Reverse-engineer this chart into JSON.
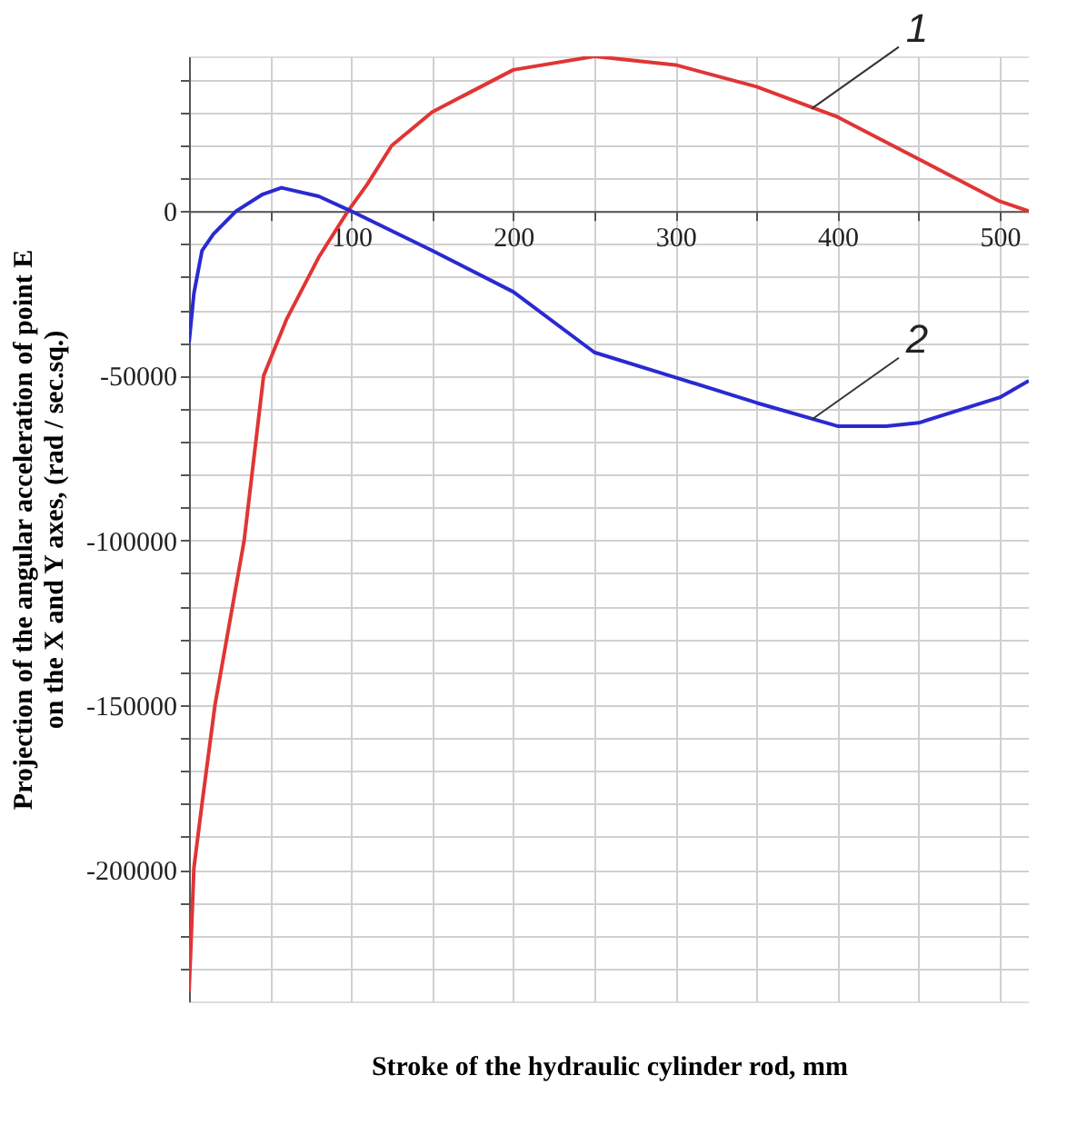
{
  "chart_data": {
    "type": "line",
    "xlabel": "Stroke of the hydraulic cylinder rod, mm",
    "ylabel": "Projection of the angular acceleration of point E\non the X and Y axes, (rad / sec.sq.)",
    "xlim": [
      0,
      518
    ],
    "ylim": [
      -240000,
      47000
    ],
    "xticks": [
      {
        "value": 50,
        "label": null
      },
      100,
      {
        "value": 150,
        "label": null
      },
      200,
      {
        "value": 250,
        "label": null
      },
      300,
      {
        "value": 350,
        "label": null
      },
      400,
      {
        "value": 450,
        "label": null
      },
      500
    ],
    "yticks": [
      {
        "value": -230000,
        "label": null
      },
      {
        "value": -220000,
        "label": null
      },
      {
        "value": -210000,
        "label": null
      },
      -200000,
      {
        "value": -190000,
        "label": null
      },
      {
        "value": -180000,
        "label": null
      },
      {
        "value": -170000,
        "label": null
      },
      {
        "value": -160000,
        "label": null
      },
      -150000,
      {
        "value": -140000,
        "label": null
      },
      {
        "value": -130000,
        "label": null
      },
      {
        "value": -120000,
        "label": null
      },
      {
        "value": -110000,
        "label": null
      },
      -100000,
      {
        "value": -90000,
        "label": null
      },
      {
        "value": -80000,
        "label": null
      },
      {
        "value": -70000,
        "label": null
      },
      {
        "value": -60000,
        "label": null
      },
      -50000,
      {
        "value": -40000,
        "label": null
      },
      {
        "value": -30000,
        "label": null
      },
      {
        "value": -20000,
        "label": null
      },
      {
        "value": -10000,
        "label": null
      },
      0,
      {
        "value": 10000,
        "label": null
      },
      {
        "value": 20000,
        "label": null
      },
      {
        "value": 30000,
        "label": null
      },
      {
        "value": 40000,
        "label": null
      }
    ],
    "grid": true,
    "marker": "none",
    "line_style": "solid",
    "series": [
      {
        "color": "#e03535",
        "x": [
          0,
          1,
          3,
          8,
          16,
          25,
          34,
          46,
          60,
          80,
          98,
          110,
          125,
          150,
          200,
          250,
          300,
          350,
          400,
          450,
          500,
          518
        ],
        "values": [
          -237000,
          -225000,
          -199500,
          -180000,
          -150000,
          -125000,
          -100000,
          -50000,
          -33000,
          -14000,
          0,
          8200,
          19900,
          30100,
          42900,
          47000,
          44400,
          37800,
          28600,
          15800,
          3000,
          0
        ]
      },
      {
        "color": "#2a2ad0",
        "x": [
          0,
          3,
          8,
          15,
          29,
          45,
          57,
          80,
          100,
          150,
          200,
          250,
          300,
          350,
          400,
          430,
          450,
          500,
          518
        ],
        "values": [
          -40000,
          -25000,
          -12000,
          -7000,
          0,
          5000,
          7100,
          4500,
          0,
          -12000,
          -24500,
          -42900,
          -50500,
          -58200,
          -65300,
          -65300,
          -64300,
          -56600,
          -51500
        ]
      }
    ],
    "annotations": [
      {
        "text": "1",
        "x": 384,
        "y": 31100
      },
      {
        "text": "2",
        "x": 384,
        "y": -63300
      }
    ]
  }
}
